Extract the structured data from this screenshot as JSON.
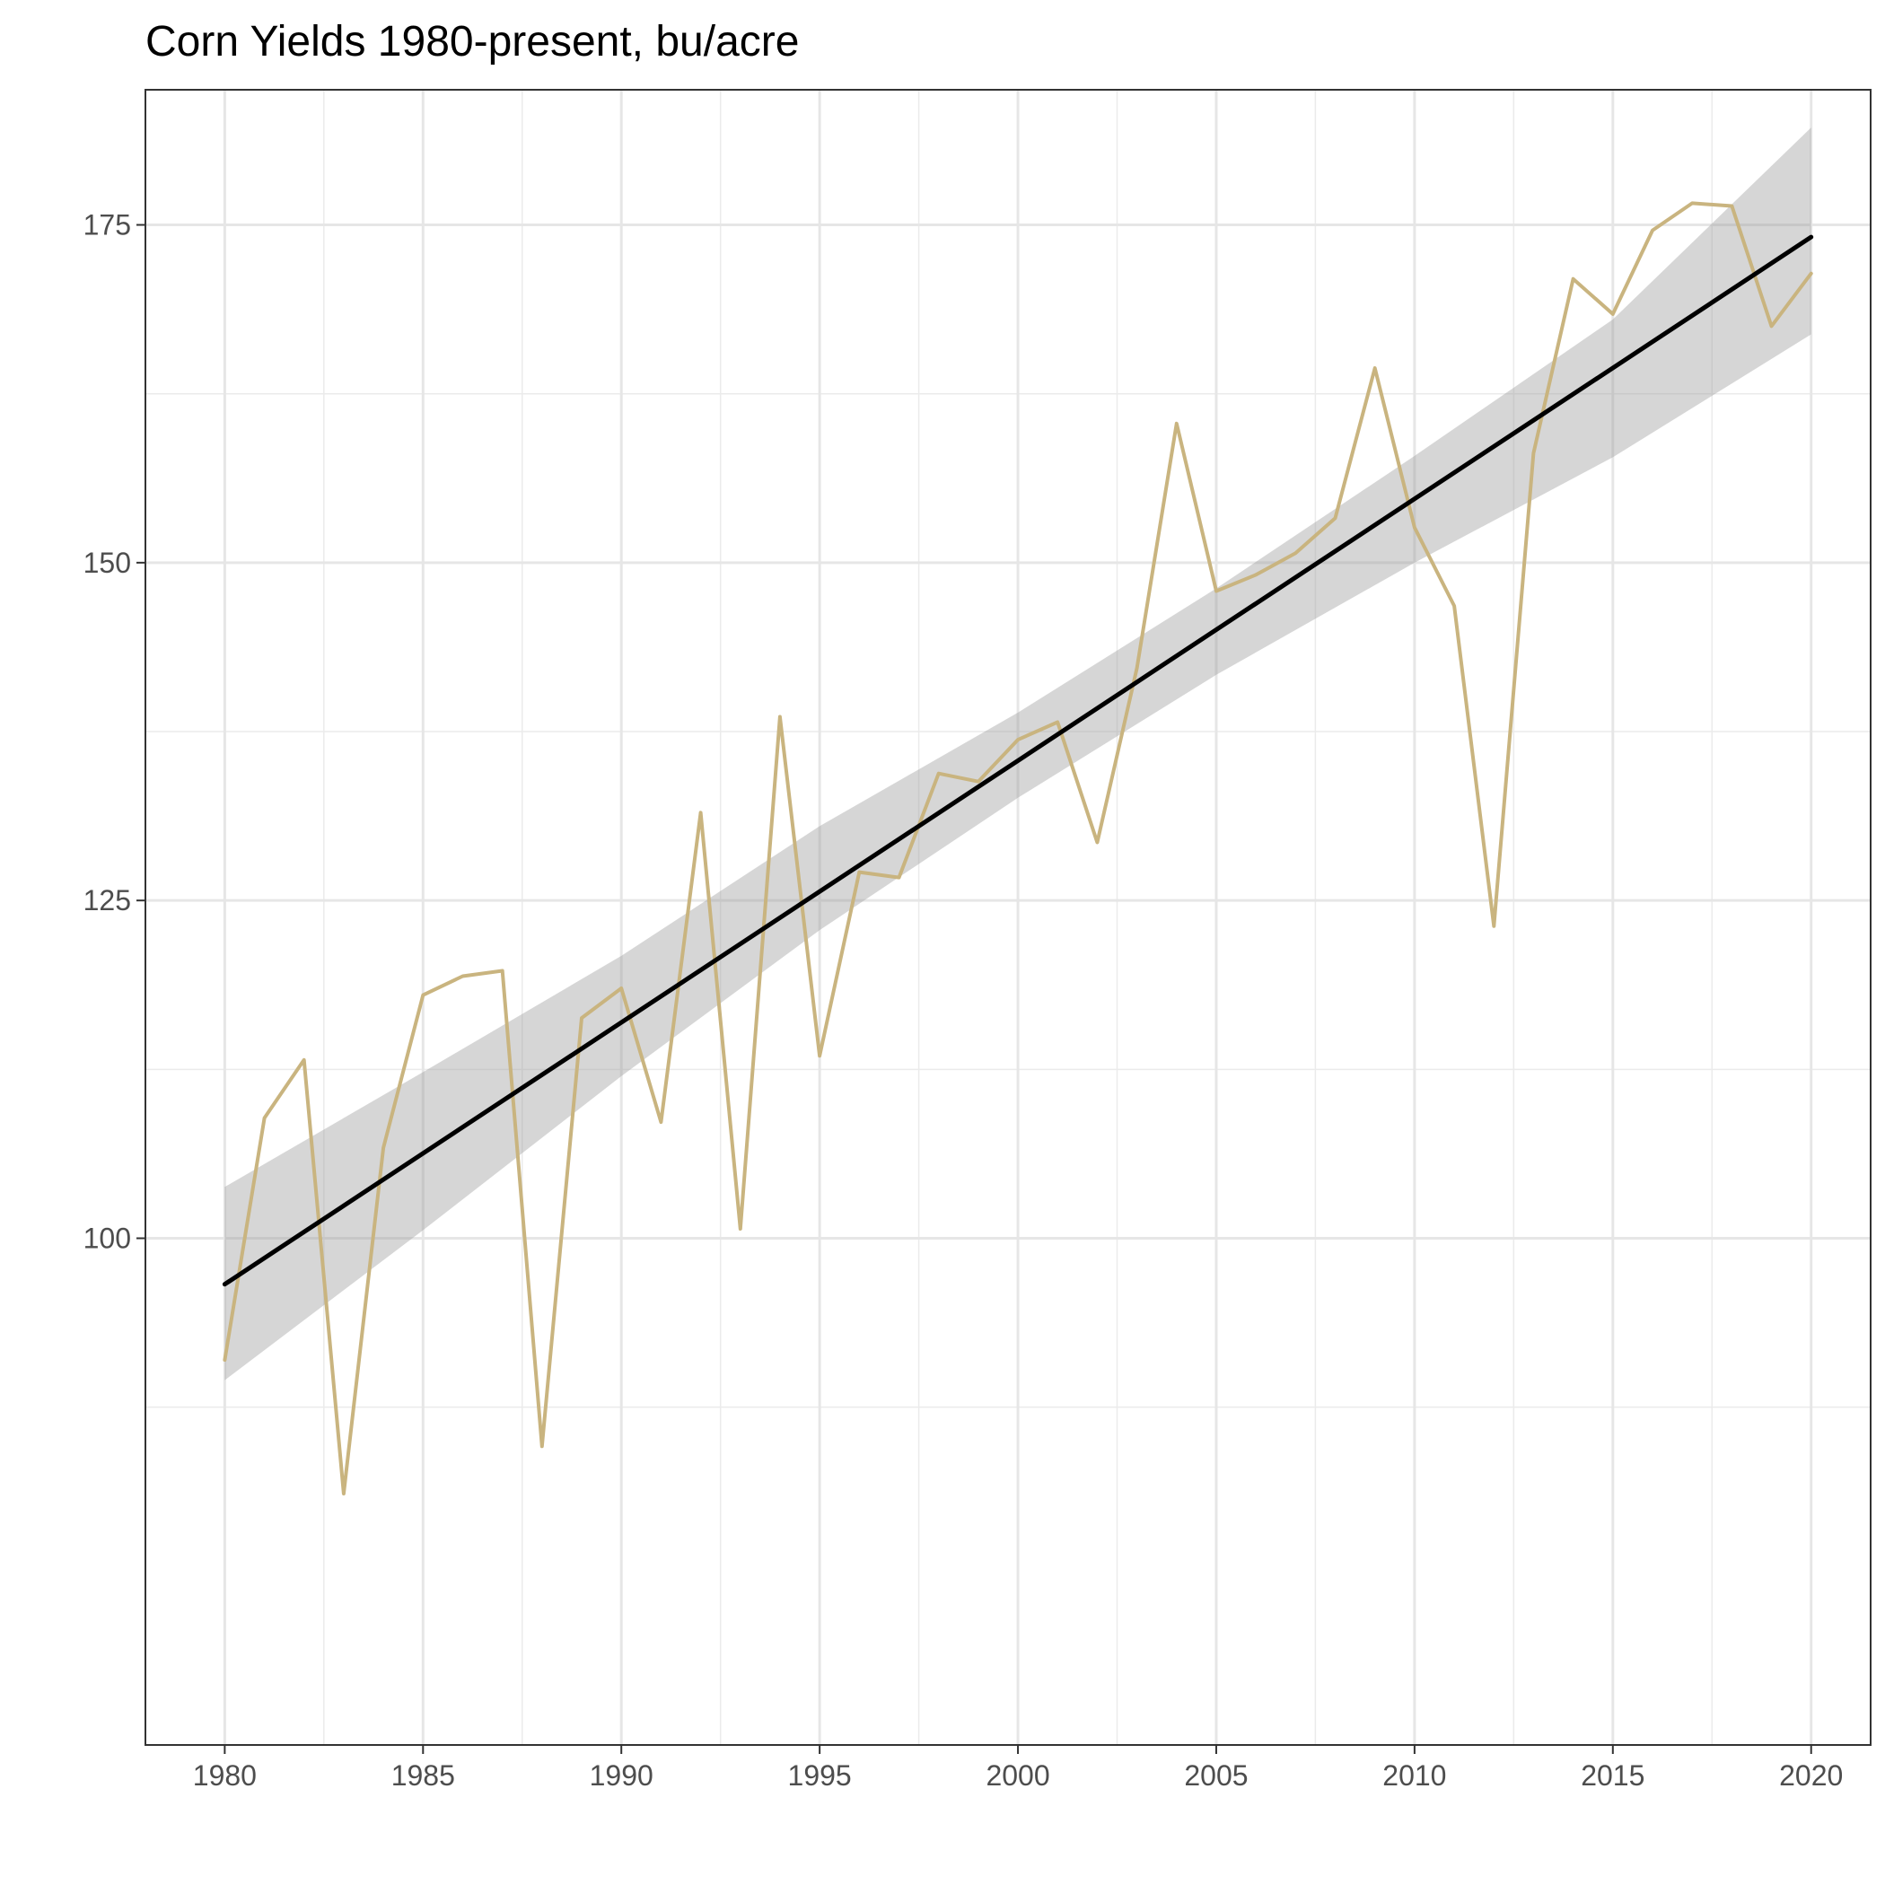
{
  "chart_data": {
    "type": "line",
    "title": "Corn Yields 1980-present, bu/acre",
    "xlabel": "",
    "ylabel": "",
    "xlim": [
      1978,
      2021.5
    ],
    "ylim": [
      62.5,
      185
    ],
    "x_ticks": [
      1980,
      1985,
      1990,
      1995,
      2000,
      2005,
      2010,
      2015,
      2020
    ],
    "y_ticks": [
      100,
      125,
      150,
      175
    ],
    "grid": true,
    "series": [
      {
        "color": "#c9b47f",
        "x": [
          1980,
          1981,
          1982,
          1983,
          1984,
          1985,
          1986,
          1987,
          1988,
          1989,
          1990,
          1991,
          1992,
          1993,
          1994,
          1995,
          1996,
          1997,
          1998,
          1999,
          2000,
          2001,
          2002,
          2003,
          2004,
          2005,
          2006,
          2007,
          2008,
          2009,
          2010,
          2011,
          2012,
          2013,
          2014,
          2015,
          2016,
          2017,
          2018,
          2019,
          2020
        ],
        "y": [
          91.0,
          108.9,
          113.2,
          81.1,
          106.7,
          118.0,
          119.4,
          119.8,
          84.6,
          116.3,
          118.5,
          108.6,
          131.5,
          100.7,
          138.6,
          113.5,
          127.1,
          126.7,
          134.4,
          133.8,
          136.9,
          138.2,
          129.3,
          142.2,
          160.3,
          147.9,
          149.1,
          150.7,
          153.3,
          164.4,
          152.6,
          146.8,
          123.1,
          158.1,
          171.0,
          168.4,
          174.6,
          176.6,
          176.4,
          167.5,
          171.4
        ]
      },
      {
        "color": "#000000",
        "x": [
          1980,
          2020
        ],
        "y": [
          96.6,
          174.1
        ]
      }
    ],
    "confidence_band": {
      "color": "#999999",
      "x": [
        1980,
        1985,
        1990,
        1995,
        2000,
        2005,
        2010,
        2015,
        2020
      ],
      "lower": [
        89.5,
        100.6,
        112.0,
        122.8,
        132.6,
        141.7,
        150.0,
        157.8,
        166.9
      ],
      "upper": [
        103.8,
        112.3,
        120.9,
        130.5,
        138.9,
        148.1,
        157.9,
        168.0,
        182.2
      ]
    }
  }
}
